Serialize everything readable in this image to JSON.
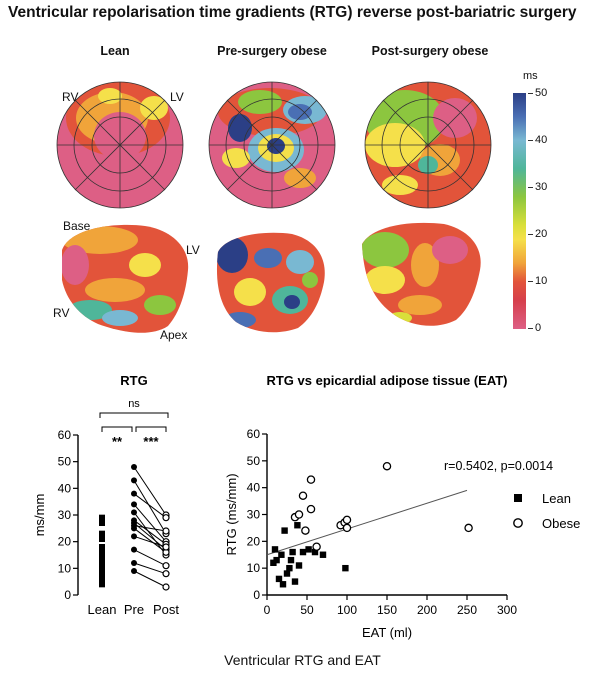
{
  "title": "Ventricular repolarisation time gradients (RTG) reverse post-bariatric surgery",
  "maps": {
    "columns": [
      "Lean",
      "Pre-surgery obese",
      "Post-surgery obese"
    ],
    "labels": {
      "rv": "RV",
      "lv": "LV",
      "base": "Base",
      "apex": "Apex"
    },
    "colorbar": {
      "unit": "ms",
      "ticks": [
        "50",
        "40",
        "30",
        "20",
        "10",
        "0"
      ]
    }
  },
  "caption": "Ventricular RTG and EAT",
  "chart_data": [
    {
      "type": "scatter",
      "title": "RTG",
      "ylabel": "ms/mm",
      "categories": [
        "Lean",
        "Pre",
        "Post"
      ],
      "ylim": [
        0,
        60
      ],
      "yticks": [
        "0",
        "10",
        "20",
        "30",
        "40",
        "50",
        "60"
      ],
      "significance": [
        {
          "from": "Lean",
          "to": "Pre",
          "label": "**"
        },
        {
          "from": "Pre",
          "to": "Post",
          "label": "***"
        },
        {
          "from": "Lean",
          "to": "Post",
          "label": "ns"
        }
      ],
      "lean_values": [
        29,
        27,
        23,
        21,
        18,
        16,
        15,
        14,
        13,
        12,
        11,
        10,
        9,
        8,
        7,
        6,
        5,
        4
      ],
      "paired_pre_post": [
        [
          48,
          30
        ],
        [
          43,
          23
        ],
        [
          38,
          29
        ],
        [
          34,
          20
        ],
        [
          31,
          15
        ],
        [
          28,
          19
        ],
        [
          27,
          17
        ],
        [
          26,
          24
        ],
        [
          25,
          16
        ],
        [
          22,
          18
        ],
        [
          17,
          11
        ],
        [
          12,
          8
        ],
        [
          9,
          3
        ]
      ]
    },
    {
      "type": "scatter",
      "title": "RTG vs epicardial adipose tissue (EAT)",
      "xlabel": "EAT (ml)",
      "ylabel": "RTG (ms/mm)",
      "xlim": [
        0,
        300
      ],
      "ylim": [
        0,
        60
      ],
      "xticks": [
        "0",
        "50",
        "100",
        "150",
        "200",
        "250",
        "300"
      ],
      "yticks": [
        "0",
        "10",
        "20",
        "30",
        "40",
        "50",
        "60"
      ],
      "annotation": "r=0.5402, p=0.0014",
      "series": [
        {
          "name": "Lean",
          "marker": "filled-square",
          "points": [
            [
              8,
              12
            ],
            [
              10,
              17
            ],
            [
              12,
              13
            ],
            [
              15,
              6
            ],
            [
              18,
              15
            ],
            [
              20,
              4
            ],
            [
              22,
              24
            ],
            [
              25,
              8
            ],
            [
              28,
              10
            ],
            [
              30,
              13
            ],
            [
              32,
              16
            ],
            [
              35,
              5
            ],
            [
              38,
              26
            ],
            [
              40,
              11
            ],
            [
              45,
              16
            ],
            [
              52,
              17
            ],
            [
              60,
              16
            ],
            [
              70,
              15
            ],
            [
              98,
              10
            ]
          ]
        },
        {
          "name": "Obese",
          "marker": "open-circle",
          "points": [
            [
              35,
              29
            ],
            [
              40,
              30
            ],
            [
              45,
              37
            ],
            [
              48,
              24
            ],
            [
              55,
              43
            ],
            [
              55,
              32
            ],
            [
              62,
              18
            ],
            [
              92,
              26
            ],
            [
              97,
              27
            ],
            [
              100,
              28
            ],
            [
              100,
              25
            ],
            [
              150,
              48
            ],
            [
              252,
              25
            ]
          ]
        }
      ],
      "trendline": {
        "x": [
          0,
          250
        ],
        "y": [
          15,
          39
        ]
      }
    }
  ]
}
